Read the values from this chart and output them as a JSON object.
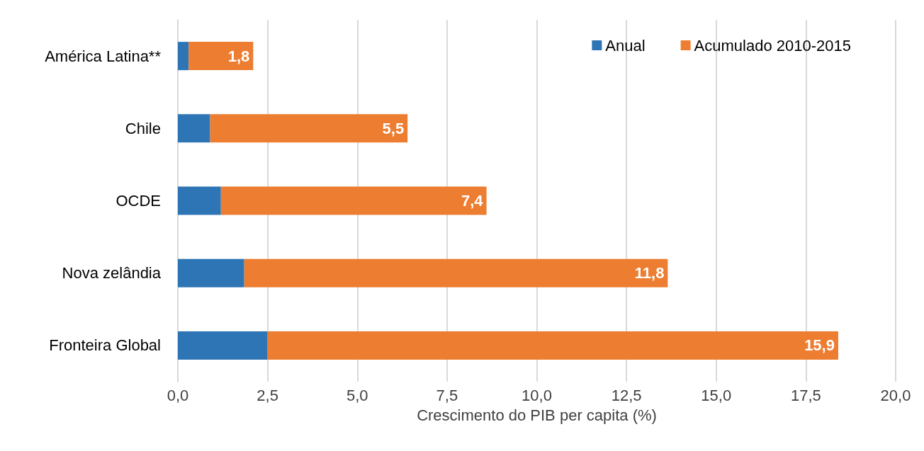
{
  "chart_data": {
    "type": "bar",
    "orientation": "horizontal",
    "stacked": true,
    "xlabel": "Crescimento do PIB per capita (%)",
    "categories": [
      "América Latina**",
      "Chile",
      "OCDE",
      "Nova zelândia",
      "Fronteira Global"
    ],
    "series": [
      {
        "name": "Anual",
        "color": "#2e75b6",
        "values": [
          0.3,
          0.9,
          1.2,
          1.85,
          2.5
        ]
      },
      {
        "name": "Acumulado 2010-2015",
        "color": "#ed7d31",
        "values": [
          1.8,
          5.5,
          7.4,
          11.8,
          15.9
        ],
        "value_labels": [
          "1,8",
          "5,5",
          "7,4",
          "11,8",
          "15,9"
        ]
      }
    ],
    "xlim": [
      0,
      20
    ],
    "xticks": [
      {
        "value": 0,
        "label": "0,0"
      },
      {
        "value": 2.5,
        "label": "2,5"
      },
      {
        "value": 5,
        "label": "5,0"
      },
      {
        "value": 7.5,
        "label": "7,5"
      },
      {
        "value": 10,
        "label": "10,0"
      },
      {
        "value": 12.5,
        "label": "12,5"
      },
      {
        "value": 15,
        "label": "15,0"
      },
      {
        "value": 17.5,
        "label": "17,5"
      },
      {
        "value": 20,
        "label": "20,0"
      }
    ],
    "grid": "x",
    "legend": "top right"
  }
}
